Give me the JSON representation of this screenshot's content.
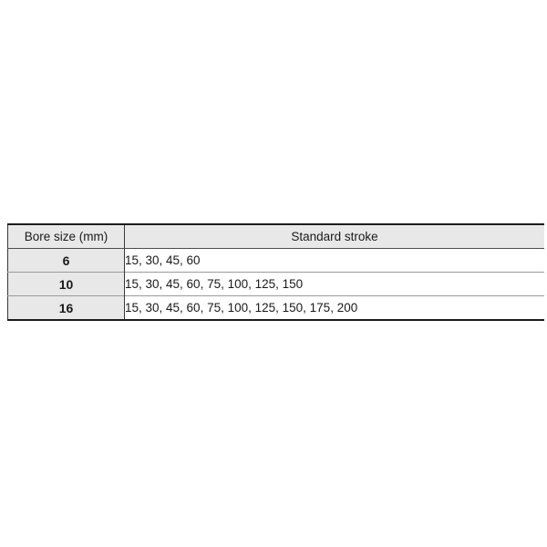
{
  "table": {
    "columns": [
      {
        "label": "Bore size (mm)"
      },
      {
        "label": "Standard stroke"
      }
    ],
    "rows": [
      {
        "bore": "6",
        "strokes": "15, 30, 45, 60"
      },
      {
        "bore": "10",
        "strokes": "15, 30, 45, 60, 75, 100, 125, 150"
      },
      {
        "bore": "16",
        "strokes": "15, 30, 45, 60, 75, 100, 125, 150, 175, 200"
      }
    ],
    "colors": {
      "header_bg": "#e8e8e8",
      "bore_cell_bg": "#e8e8e8",
      "border_dark": "#1c1c1c",
      "column_divider": "#3a3a3a",
      "row_separator": "#9a9a9a",
      "text": "#1a1a1a"
    }
  }
}
